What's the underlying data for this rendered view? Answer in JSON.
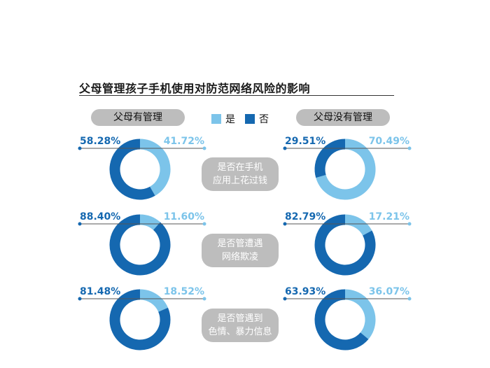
{
  "title": "父母管理孩子手机使用对防范网络风险的影响",
  "legend": [
    {
      "label": "是",
      "color": "#7cc4ea"
    },
    {
      "label": "否",
      "color": "#1568b0"
    }
  ],
  "group_labels": {
    "left": "父母有管理",
    "right": "父母没有管理"
  },
  "questions": [
    [
      "是否在手机",
      "应用上花过钱"
    ],
    [
      "是否管遭遇",
      "网络欺凌"
    ],
    [
      "是否管遇到",
      "色情、暴力信息"
    ]
  ],
  "colors": {
    "yes": "#7cc4ea",
    "no": "#1568b0",
    "pill": "#bdbdbd"
  },
  "chart_data": [
    {
      "type": "pie",
      "group": "父母有管理",
      "question": "是否在手机应用上花过钱",
      "categories": [
        "否",
        "是"
      ],
      "values": [
        58.28,
        41.72
      ],
      "labels": [
        "58.28%",
        "41.72%"
      ]
    },
    {
      "type": "pie",
      "group": "父母没有管理",
      "question": "是否在手机应用上花过钱",
      "categories": [
        "否",
        "是"
      ],
      "values": [
        29.51,
        70.49
      ],
      "labels": [
        "29.51%",
        "70.49%"
      ]
    },
    {
      "type": "pie",
      "group": "父母有管理",
      "question": "是否管遭遇网络欺凌",
      "categories": [
        "否",
        "是"
      ],
      "values": [
        88.4,
        11.6
      ],
      "labels": [
        "88.40%",
        "11.60%"
      ]
    },
    {
      "type": "pie",
      "group": "父母没有管理",
      "question": "是否管遭遇网络欺凌",
      "categories": [
        "否",
        "是"
      ],
      "values": [
        82.79,
        17.21
      ],
      "labels": [
        "82.79%",
        "17.21%"
      ]
    },
    {
      "type": "pie",
      "group": "父母有管理",
      "question": "是否管遇到色情、暴力信息",
      "categories": [
        "否",
        "是"
      ],
      "values": [
        81.48,
        18.52
      ],
      "labels": [
        "81.48%",
        "18.52%"
      ]
    },
    {
      "type": "pie",
      "group": "父母没有管理",
      "question": "是否管遇到色情、暴力信息",
      "categories": [
        "否",
        "是"
      ],
      "values": [
        63.93,
        36.07
      ],
      "labels": [
        "63.93%",
        "36.07%"
      ]
    }
  ]
}
